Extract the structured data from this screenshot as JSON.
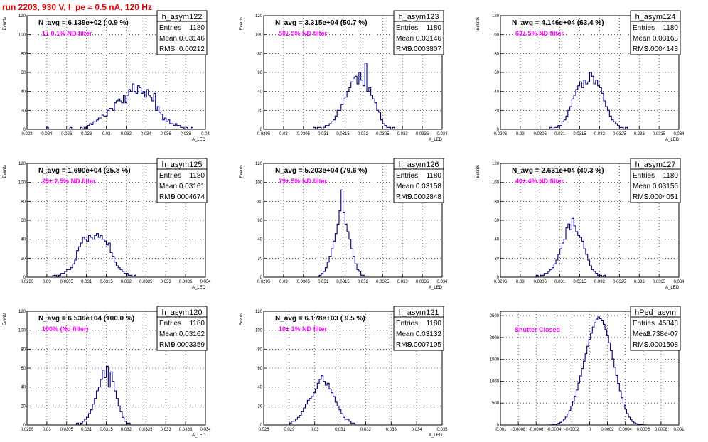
{
  "header": {
    "run_title": "run 2203,   930 V, I_pe ≈ 0.5 nA, 120 Hz"
  },
  "stats_labels": [
    "Entries",
    "Mean",
    "RMS"
  ],
  "chart_data": [
    {
      "type": "bar",
      "name": "h_asym122",
      "title": "N_avg = 6.139e+02 ( 0.9 %)",
      "annotation": "1± 0.1% ND filter",
      "ylabel": "Events",
      "xlabel": "A_LED",
      "xlim": [
        0.022,
        0.04
      ],
      "ylim": [
        0,
        120
      ],
      "xticks": [
        0.022,
        0.024,
        0.026,
        0.028,
        0.03,
        0.032,
        0.034,
        0.036,
        0.038,
        0.04
      ],
      "xtick_labels": [
        "0.022",
        "0.024",
        "0.026",
        "0.028",
        "0.03",
        "0.032",
        "0.034",
        "0.036",
        "0.038",
        "0.04"
      ],
      "yticks": [
        0,
        20,
        40,
        60,
        80,
        100,
        120
      ],
      "stats": {
        "entries": "1180",
        "mean": "0.03146",
        "rms": "0.00212"
      },
      "values": [
        0,
        0,
        0,
        0,
        0,
        0,
        0,
        0,
        0,
        0,
        0,
        2,
        0,
        0,
        0,
        0,
        0,
        0,
        0,
        0,
        0,
        0,
        0,
        0,
        2,
        0,
        0,
        0,
        0,
        0,
        2,
        0,
        2,
        0,
        4,
        6,
        5,
        8,
        8,
        10,
        12,
        12,
        15,
        14,
        14,
        20,
        22,
        22,
        20,
        28,
        30,
        32,
        30,
        28,
        36,
        28,
        36,
        42,
        40,
        48,
        40,
        38,
        46,
        44,
        38,
        40,
        34,
        42,
        36,
        34,
        30,
        38,
        20,
        24,
        18,
        16,
        10,
        12,
        8,
        10,
        6,
        6,
        4,
        6,
        4,
        4,
        2,
        2,
        0,
        2,
        0,
        0,
        2,
        0,
        0,
        0,
        0,
        0,
        0,
        0
      ]
    },
    {
      "type": "bar",
      "name": "h_asym123",
      "title": "N_avg = 3.315e+04 (50.7 %)",
      "annotation": "50± 5% ND filter",
      "ylabel": "Events",
      "xlabel": "A_LED",
      "xlim": [
        0.0295,
        0.034
      ],
      "ylim": [
        0,
        120
      ],
      "xticks": [
        0.0295,
        0.03,
        0.0305,
        0.031,
        0.0315,
        0.032,
        0.0325,
        0.033,
        0.0335,
        0.034
      ],
      "xtick_labels": [
        "0.0295",
        "0.03",
        "0.0305",
        "0.031",
        "0.0315",
        "0.032",
        "0.0325",
        "0.033",
        "0.0335",
        "0.034"
      ],
      "yticks": [
        0,
        20,
        40,
        60,
        80,
        100,
        120
      ],
      "stats": {
        "entries": "1180",
        "mean": "0.03146",
        "rms": "0.0003807"
      },
      "values": [
        0,
        0,
        0,
        0,
        0,
        0,
        0,
        0,
        0,
        0,
        0,
        0,
        0,
        0,
        0,
        0,
        0,
        0,
        0,
        0,
        0,
        0,
        0,
        0,
        0,
        2,
        0,
        2,
        2,
        0,
        2,
        4,
        4,
        6,
        8,
        10,
        14,
        20,
        20,
        26,
        32,
        34,
        40,
        44,
        50,
        54,
        56,
        48,
        60,
        52,
        46,
        70,
        40,
        44,
        36,
        32,
        28,
        20,
        18,
        10,
        6,
        4,
        2,
        2,
        0,
        2,
        0,
        0,
        0,
        0,
        0,
        0,
        0,
        0,
        0,
        0,
        0,
        0,
        0,
        0,
        0,
        0,
        0,
        0,
        0,
        0,
        0,
        0,
        0,
        0
      ]
    },
    {
      "type": "bar",
      "name": "h_asym124",
      "title": "N_avg = 4.146e+04 (63.4 %)",
      "annotation": "63± 5% ND filter",
      "ylabel": "Events",
      "xlabel": "A_LED",
      "xlim": [
        0.0295,
        0.034
      ],
      "ylim": [
        0,
        120
      ],
      "xticks": [
        0.0295,
        0.03,
        0.0305,
        0.031,
        0.0315,
        0.032,
        0.0325,
        0.033,
        0.0335,
        0.034
      ],
      "xtick_labels": [
        "0.0295",
        "0.03",
        "0.0305",
        "0.031",
        "0.0315",
        "0.032",
        "0.0325",
        "0.033",
        "0.0335",
        "0.034"
      ],
      "yticks": [
        0,
        20,
        40,
        60,
        80,
        100,
        120
      ],
      "stats": {
        "entries": "1180",
        "mean": "0.03163",
        "rms": "0.0004143"
      },
      "values": [
        0,
        0,
        0,
        0,
        0,
        0,
        0,
        0,
        0,
        0,
        0,
        0,
        0,
        0,
        0,
        0,
        0,
        0,
        0,
        0,
        0,
        0,
        0,
        0,
        0,
        2,
        0,
        2,
        2,
        4,
        4,
        8,
        10,
        14,
        20,
        24,
        32,
        36,
        42,
        46,
        50,
        44,
        52,
        48,
        50,
        60,
        56,
        48,
        52,
        46,
        44,
        38,
        30,
        24,
        20,
        14,
        10,
        8,
        6,
        4,
        2,
        2,
        0,
        2,
        0,
        0,
        0,
        0,
        0,
        0,
        0,
        0,
        0,
        0,
        0,
        0,
        0,
        0,
        0,
        0,
        0,
        0,
        0,
        0,
        0,
        0,
        0,
        0,
        0,
        0
      ]
    },
    {
      "type": "bar",
      "name": "h_asym125",
      "title": "N_avg = 1.690e+04 (25.8 %)",
      "annotation": "25± 2.5% ND filter",
      "ylabel": "Events",
      "xlabel": "A_LED",
      "xlim": [
        0.0295,
        0.034
      ],
      "ylim": [
        0,
        120
      ],
      "xticks": [
        0.0295,
        0.03,
        0.0305,
        0.031,
        0.0315,
        0.032,
        0.0325,
        0.033,
        0.0335,
        0.034
      ],
      "xtick_labels": [
        "0.0295",
        "0.03",
        "0.0305",
        "0.031",
        "0.0315",
        "0.032",
        "0.0325",
        "0.033",
        "0.0335",
        "0.034"
      ],
      "yticks": [
        0,
        20,
        40,
        60,
        80,
        100,
        120
      ],
      "stats": {
        "entries": "1180",
        "mean": "0.03161",
        "rms": "0.0004674"
      },
      "values": [
        0,
        0,
        0,
        0,
        0,
        0,
        0,
        0,
        0,
        0,
        0,
        0,
        0,
        2,
        2,
        0,
        2,
        4,
        4,
        6,
        8,
        8,
        10,
        14,
        18,
        28,
        32,
        36,
        42,
        40,
        38,
        44,
        42,
        40,
        44,
        46,
        42,
        44,
        40,
        38,
        34,
        36,
        26,
        22,
        16,
        12,
        10,
        8,
        6,
        4,
        4,
        2,
        2,
        0,
        2,
        0,
        0,
        0,
        0,
        0,
        0,
        0,
        0,
        0,
        0,
        0,
        0,
        0,
        0,
        0,
        0,
        0,
        0,
        0,
        0,
        0,
        0,
        0,
        0,
        0,
        0,
        0,
        0,
        0,
        0,
        0,
        0,
        0,
        0,
        0
      ]
    },
    {
      "type": "bar",
      "name": "h_asym126",
      "title": "N_avg = 5.203e+04 (79.6 %)",
      "annotation": "79± 5% ND filter",
      "ylabel": "Events",
      "xlabel": "A_LED",
      "xlim": [
        0.0295,
        0.034
      ],
      "ylim": [
        0,
        120
      ],
      "xticks": [
        0.0295,
        0.03,
        0.0305,
        0.031,
        0.0315,
        0.032,
        0.0325,
        0.033,
        0.0335,
        0.034
      ],
      "xtick_labels": [
        "0.0295",
        "0.03",
        "0.0305",
        "0.031",
        "0.0315",
        "0.032",
        "0.0325",
        "0.033",
        "0.0335",
        "0.034"
      ],
      "yticks": [
        0,
        20,
        40,
        60,
        80,
        100,
        120
      ],
      "stats": {
        "entries": "1180",
        "mean": "0.03158",
        "rms": "0.0002848"
      },
      "values": [
        0,
        0,
        0,
        0,
        0,
        0,
        0,
        0,
        0,
        0,
        0,
        0,
        0,
        0,
        0,
        0,
        0,
        0,
        0,
        0,
        0,
        0,
        0,
        0,
        0,
        0,
        0,
        0,
        2,
        4,
        6,
        10,
        16,
        22,
        30,
        38,
        46,
        56,
        70,
        92,
        68,
        56,
        48,
        40,
        30,
        22,
        14,
        8,
        6,
        2,
        2,
        0,
        0,
        0,
        0,
        0,
        0,
        0,
        0,
        0,
        0,
        0,
        0,
        0,
        0,
        0,
        0,
        0,
        0,
        0,
        0,
        0,
        0,
        0,
        0,
        0,
        0,
        0,
        0,
        0,
        0,
        0,
        0,
        0,
        0,
        0,
        0,
        0,
        0,
        0
      ]
    },
    {
      "type": "bar",
      "name": "h_asym127",
      "title": "N_avg = 2.631e+04 (40.3 %)",
      "annotation": "40± 4% ND filter",
      "ylabel": "Events",
      "xlabel": "A_LED",
      "xlim": [
        0.0295,
        0.034
      ],
      "ylim": [
        0,
        120
      ],
      "xticks": [
        0.0295,
        0.03,
        0.0305,
        0.031,
        0.0315,
        0.032,
        0.0325,
        0.033,
        0.0335,
        0.034
      ],
      "xtick_labels": [
        "0.0295",
        "0.03",
        "0.0305",
        "0.031",
        "0.0315",
        "0.032",
        "0.0325",
        "0.033",
        "0.0335",
        "0.034"
      ],
      "yticks": [
        0,
        20,
        40,
        60,
        80,
        100,
        120
      ],
      "stats": {
        "entries": "1180",
        "mean": "0.03156",
        "rms": "0.0004051"
      },
      "values": [
        0,
        0,
        0,
        0,
        0,
        0,
        0,
        0,
        0,
        0,
        0,
        0,
        0,
        0,
        0,
        0,
        0,
        0,
        2,
        0,
        2,
        2,
        4,
        4,
        6,
        8,
        10,
        14,
        18,
        24,
        30,
        36,
        40,
        52,
        56,
        50,
        62,
        54,
        48,
        44,
        42,
        38,
        30,
        24,
        18,
        12,
        8,
        6,
        4,
        2,
        2,
        0,
        2,
        0,
        0,
        0,
        0,
        0,
        0,
        0,
        0,
        0,
        0,
        0,
        0,
        0,
        0,
        0,
        0,
        0,
        0,
        0,
        0,
        0,
        0,
        0,
        0,
        0,
        0,
        0,
        0,
        0,
        0,
        0,
        0,
        0,
        0,
        0,
        0,
        0
      ]
    },
    {
      "type": "bar",
      "name": "h_asym120",
      "title": "N_avg = 6.536e+04 (100.0 %)",
      "annotation": "100% (No filter)",
      "ylabel": "Events",
      "xlabel": "A_LED",
      "xlim": [
        0.0295,
        0.034
      ],
      "ylim": [
        0,
        120
      ],
      "xticks": [
        0.0295,
        0.03,
        0.0305,
        0.031,
        0.0315,
        0.032,
        0.0325,
        0.033,
        0.0335,
        0.034
      ],
      "xtick_labels": [
        "0.0295",
        "0.03",
        "0.0305",
        "0.031",
        "0.0315",
        "0.032",
        "0.0325",
        "0.033",
        "0.0335",
        "0.034"
      ],
      "yticks": [
        0,
        20,
        40,
        60,
        80,
        100,
        120
      ],
      "stats": {
        "entries": "1180",
        "mean": "0.03162",
        "rms": "0.0003359"
      },
      "values": [
        0,
        0,
        0,
        0,
        0,
        0,
        0,
        0,
        0,
        0,
        0,
        0,
        0,
        0,
        0,
        0,
        0,
        0,
        0,
        0,
        0,
        0,
        0,
        0,
        0,
        2,
        0,
        2,
        4,
        6,
        8,
        12,
        16,
        22,
        28,
        36,
        40,
        48,
        58,
        50,
        62,
        40,
        56,
        46,
        36,
        28,
        20,
        14,
        8,
        4,
        2,
        2,
        0,
        0,
        0,
        0,
        0,
        0,
        0,
        0,
        0,
        0,
        0,
        0,
        0,
        0,
        0,
        0,
        0,
        0,
        0,
        0,
        0,
        0,
        0,
        0,
        0,
        0,
        0,
        0,
        0,
        0,
        0,
        0,
        0,
        0,
        0,
        0,
        0,
        0
      ]
    },
    {
      "type": "bar",
      "name": "h_asym121",
      "title": "N_avg = 6.178e+03 ( 9.5 %)",
      "annotation": "10± 1% ND filter",
      "ylabel": "Events",
      "xlabel": "A_LED",
      "xlim": [
        0.028,
        0.035
      ],
      "ylim": [
        0,
        120
      ],
      "xticks": [
        0.028,
        0.029,
        0.03,
        0.031,
        0.032,
        0.033,
        0.034,
        0.035
      ],
      "xtick_labels": [
        "0.028",
        "0.029",
        "0.03",
        "0.031",
        "0.032",
        "0.033",
        "0.034",
        "0.035"
      ],
      "yticks": [
        0,
        20,
        40,
        60,
        80,
        100,
        120
      ],
      "stats": {
        "entries": "1180",
        "mean": "0.03132",
        "rms": "0.0007105"
      },
      "values": [
        0,
        0,
        0,
        0,
        0,
        0,
        0,
        0,
        0,
        0,
        0,
        0,
        0,
        2,
        4,
        4,
        6,
        8,
        10,
        14,
        18,
        22,
        26,
        28,
        30,
        34,
        38,
        44,
        48,
        52,
        46,
        42,
        44,
        38,
        34,
        30,
        24,
        20,
        16,
        12,
        8,
        6,
        6,
        4,
        2,
        2,
        0,
        0,
        0,
        0,
        0,
        0,
        0,
        0,
        0,
        0,
        0,
        0,
        0,
        0,
        0,
        0,
        0,
        0,
        0,
        0,
        0,
        0,
        0,
        0,
        0,
        0,
        0,
        0,
        0,
        0,
        0,
        0,
        0,
        0,
        0,
        0,
        0,
        0,
        0,
        0,
        0,
        0,
        0,
        0
      ]
    },
    {
      "type": "bar",
      "name": "hPed_asym",
      "title": "",
      "annotation": "Shutter Closed",
      "ylabel": "",
      "xlabel": "",
      "xlim": [
        -0.001,
        0.001
      ],
      "ylim": [
        0,
        2600
      ],
      "xticks": [
        -0.001,
        -0.0008,
        -0.0006,
        -0.0004,
        -0.0002,
        0,
        0.0002,
        0.0004,
        0.0006,
        0.0008,
        0.001
      ],
      "xtick_labels": [
        "-0.001",
        "-0.0008",
        "-0.0006",
        "-0.0004",
        "-0.0002",
        "0",
        "0.0002",
        "0.0004",
        "0.0006",
        "0.0008",
        "0.001"
      ],
      "yticks": [
        0,
        500,
        1000,
        1500,
        2000,
        2500
      ],
      "stats": {
        "entries": "45848",
        "mean": "2.738e-07",
        "rms": "0.0001508"
      },
      "values": [
        0,
        0,
        0,
        0,
        0,
        0,
        0,
        0,
        0,
        0,
        0,
        0,
        0,
        0,
        0,
        0,
        0,
        0,
        0,
        0,
        0,
        0,
        0,
        0,
        0,
        0,
        0,
        2,
        4,
        8,
        14,
        24,
        40,
        60,
        90,
        130,
        180,
        250,
        330,
        430,
        540,
        660,
        800,
        960,
        1120,
        1290,
        1460,
        1630,
        1800,
        1960,
        2100,
        2240,
        2340,
        2420,
        2470,
        2430,
        2380,
        2300,
        2180,
        2040,
        1880,
        1700,
        1510,
        1320,
        1130,
        950,
        780,
        620,
        480,
        360,
        260,
        180,
        120,
        80,
        50,
        30,
        18,
        10,
        6,
        4,
        2,
        0,
        0,
        0,
        0,
        0,
        0,
        0,
        0,
        0,
        0,
        0,
        0,
        0,
        0,
        0,
        0,
        0,
        0
      ]
    }
  ]
}
